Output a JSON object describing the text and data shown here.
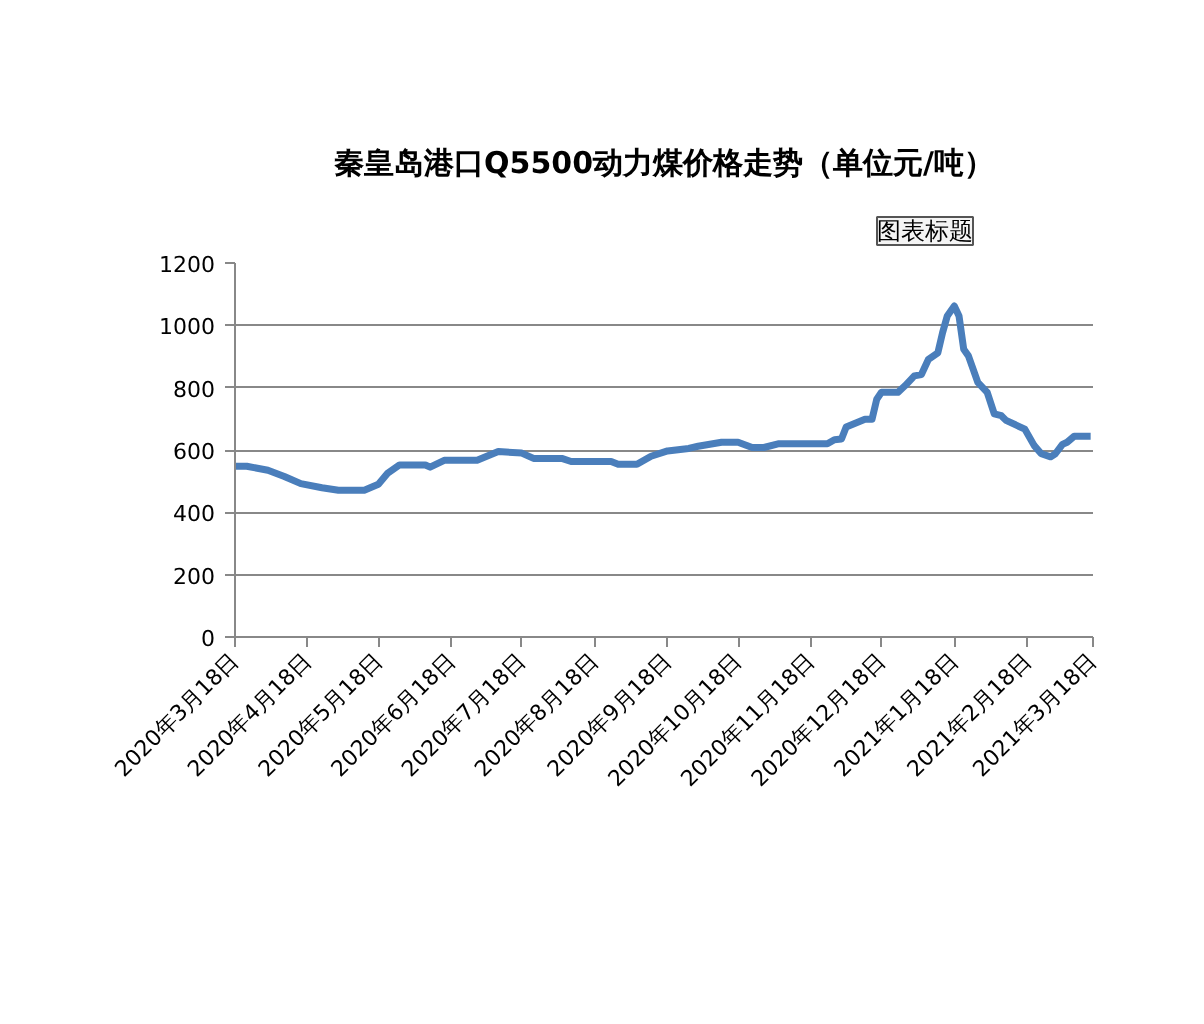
{
  "chart_data": {
    "type": "line",
    "title": "秦皇岛港口Q5500动力煤价格走势（单位元/吨）",
    "annotations": [
      "图表标题"
    ],
    "x": [
      "2020-03-18",
      "2020-03-23",
      "2020-04-01",
      "2020-04-08",
      "2020-04-15",
      "2020-04-24",
      "2020-05-01",
      "2020-05-12",
      "2020-05-18",
      "2020-05-22",
      "2020-05-27",
      "2020-06-07",
      "2020-06-09",
      "2020-06-15",
      "2020-06-29",
      "2020-07-08",
      "2020-07-18",
      "2020-07-23",
      "2020-08-04",
      "2020-08-08",
      "2020-08-25",
      "2020-08-28",
      "2020-09-05",
      "2020-09-11",
      "2020-09-18",
      "2020-09-27",
      "2020-10-01",
      "2020-10-11",
      "2020-10-18",
      "2020-10-24",
      "2020-10-29",
      "2020-11-04",
      "2020-11-25",
      "2020-11-28",
      "2020-12-01",
      "2020-12-03",
      "2020-12-11",
      "2020-12-14",
      "2020-12-16",
      "2020-12-18",
      "2020-12-25",
      "2020-12-28",
      "2021-01-01",
      "2021-01-04",
      "2021-01-07",
      "2021-01-11",
      "2021-01-13",
      "2021-01-15",
      "2021-01-18",
      "2021-01-20",
      "2021-01-22",
      "2021-01-24",
      "2021-01-28",
      "2021-02-01",
      "2021-02-04",
      "2021-02-07",
      "2021-02-09",
      "2021-02-17",
      "2021-02-21",
      "2021-02-24",
      "2021-02-28",
      "2021-03-02",
      "2021-03-05",
      "2021-03-07",
      "2021-03-10",
      "2021-03-17"
    ],
    "series": [
      {
        "color": "#4a7ebb",
        "values": [
          548,
          548,
          535,
          515,
          492,
          479,
          471,
          471,
          490,
          526,
          552,
          552,
          545,
          567,
          567,
          595,
          590,
          573,
          573,
          563,
          563,
          554,
          554,
          580,
          597,
          605,
          612,
          625,
          625,
          608,
          608,
          620,
          620,
          633,
          635,
          674,
          699,
          699,
          763,
          785,
          785,
          806,
          838,
          842,
          891,
          912,
          976,
          1030,
          1062,
          1030,
          923,
          902,
          817,
          785,
          716,
          710,
          695,
          667,
          614,
          588,
          578,
          588,
          618,
          625,
          644,
          644
        ]
      }
    ],
    "xlim": [
      "2020-03-18",
      "2021-03-18"
    ],
    "xticks": [
      {
        "value": "2020-03-18",
        "label": "2020年3月18日"
      },
      {
        "value": "2020-04-18",
        "label": "2020年4月18日"
      },
      {
        "value": "2020-05-18",
        "label": "2020年5月18日"
      },
      {
        "value": "2020-06-18",
        "label": "2020年6月18日"
      },
      {
        "value": "2020-07-18",
        "label": "2020年7月18日"
      },
      {
        "value": "2020-08-18",
        "label": "2020年8月18日"
      },
      {
        "value": "2020-09-18",
        "label": "2020年9月18日"
      },
      {
        "value": "2020-10-18",
        "label": "2020年10月18日"
      },
      {
        "value": "2020-11-18",
        "label": "2020年11月18日"
      },
      {
        "value": "2020-12-18",
        "label": "2020年12月18日"
      },
      {
        "value": "2021-01-18",
        "label": "2021年1月18日"
      },
      {
        "value": "2021-02-18",
        "label": "2021年2月18日"
      },
      {
        "value": "2021-03-18",
        "label": "2021年3月18日"
      }
    ],
    "ylim": [
      0,
      1200
    ],
    "yticks": [
      0,
      200,
      400,
      600,
      800,
      1000,
      1200
    ],
    "grid": "y",
    "marker": "none",
    "line_style": "solid"
  }
}
